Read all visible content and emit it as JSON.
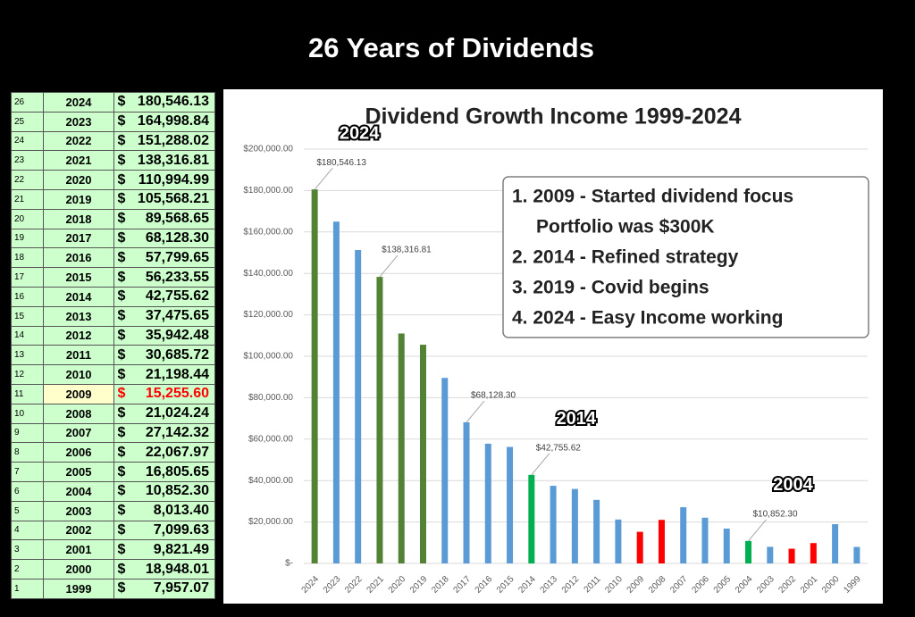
{
  "header": {
    "title": "26 Years of Dividends"
  },
  "table": {
    "currency": "$",
    "highlight_year": "2009",
    "rows": [
      [
        "26",
        "2024",
        "180,546.13"
      ],
      [
        "25",
        "2023",
        "164,998.84"
      ],
      [
        "24",
        "2022",
        "151,288.02"
      ],
      [
        "23",
        "2021",
        "138,316.81"
      ],
      [
        "22",
        "2020",
        "110,994.99"
      ],
      [
        "21",
        "2019",
        "105,568.21"
      ],
      [
        "20",
        "2018",
        "89,568.65"
      ],
      [
        "19",
        "2017",
        "68,128.30"
      ],
      [
        "18",
        "2016",
        "57,799.65"
      ],
      [
        "17",
        "2015",
        "56,233.55"
      ],
      [
        "16",
        "2014",
        "42,755.62"
      ],
      [
        "15",
        "2013",
        "37,475.65"
      ],
      [
        "14",
        "2012",
        "35,942.48"
      ],
      [
        "13",
        "2011",
        "30,685.72"
      ],
      [
        "12",
        "2010",
        "21,198.44"
      ],
      [
        "11",
        "2009",
        "15,255.60"
      ],
      [
        "10",
        "2008",
        "21,024.24"
      ],
      [
        "9",
        "2007",
        "27,142.32"
      ],
      [
        "8",
        "2006",
        "22,067.97"
      ],
      [
        "7",
        "2005",
        "16,805.65"
      ],
      [
        "6",
        "2004",
        "10,852.30"
      ],
      [
        "5",
        "2003",
        "8,013.40"
      ],
      [
        "4",
        "2002",
        "7,099.63"
      ],
      [
        "3",
        "2001",
        "9,821.49"
      ],
      [
        "2",
        "2000",
        "18,948.01"
      ],
      [
        "1",
        "1999",
        "7,957.07"
      ]
    ]
  },
  "chart_data": {
    "type": "bar",
    "title": "Dividend Growth Income 1999-2024",
    "categories": [
      "2024",
      "2023",
      "2022",
      "2021",
      "2020",
      "2019",
      "2018",
      "2017",
      "2016",
      "2015",
      "2014",
      "2013",
      "2012",
      "2011",
      "2010",
      "2009",
      "2008",
      "2007",
      "2006",
      "2005",
      "2004",
      "2003",
      "2002",
      "2001",
      "2000",
      "1999"
    ],
    "values": [
      180546.13,
      164998.84,
      151288.02,
      138316.81,
      110994.99,
      105568.21,
      89568.65,
      68128.3,
      57799.65,
      56233.55,
      42755.62,
      37475.65,
      35942.48,
      30685.72,
      21198.44,
      15255.6,
      21024.24,
      27142.32,
      22067.97,
      16805.65,
      10852.3,
      8013.4,
      7099.63,
      9821.49,
      18948.01,
      7957.07
    ],
    "value_labels": [
      "$180,546.13",
      null,
      null,
      "$138,316.81",
      null,
      null,
      null,
      "$68,128.30",
      null,
      null,
      "$42,755.62",
      null,
      null,
      null,
      null,
      null,
      null,
      null,
      null,
      null,
      "$10,852.30",
      null,
      null,
      null,
      null,
      null
    ],
    "colors": [
      "#548235",
      "#5b9bd5",
      "#5b9bd5",
      "#548235",
      "#548235",
      "#548235",
      "#5b9bd5",
      "#5b9bd5",
      "#5b9bd5",
      "#5b9bd5",
      "#00b050",
      "#5b9bd5",
      "#5b9bd5",
      "#5b9bd5",
      "#5b9bd5",
      "#ff0000",
      "#ff0000",
      "#5b9bd5",
      "#5b9bd5",
      "#5b9bd5",
      "#00b050",
      "#5b9bd5",
      "#ff0000",
      "#ff0000",
      "#5b9bd5",
      "#5b9bd5"
    ],
    "ylim": [
      0,
      200000
    ],
    "yticks": [
      {
        "value": 0,
        "label": "$-"
      },
      {
        "value": 20000,
        "label": "$20,000.00"
      },
      {
        "value": 40000,
        "label": "$40,000.00"
      },
      {
        "value": 60000,
        "label": "$60,000.00"
      },
      {
        "value": 80000,
        "label": "$80,000.00"
      },
      {
        "value": 100000,
        "label": "$100,000.00"
      },
      {
        "value": 120000,
        "label": "$120,000.00"
      },
      {
        "value": 140000,
        "label": "$140,000.00"
      },
      {
        "value": 160000,
        "label": "$160,000.00"
      },
      {
        "value": 180000,
        "label": "$180,000.00"
      },
      {
        "value": 200000,
        "label": "$200,000.00"
      }
    ],
    "grid": true,
    "annotations": [
      "2024",
      "2014",
      "2004"
    ],
    "note_lines": [
      "1. 2009 - Started dividend focus",
      "Portfolio was $300K",
      "2. 2014 - Refined strategy",
      "3. 2019 - Covid begins",
      "4. 2024 - Easy Income working"
    ]
  }
}
